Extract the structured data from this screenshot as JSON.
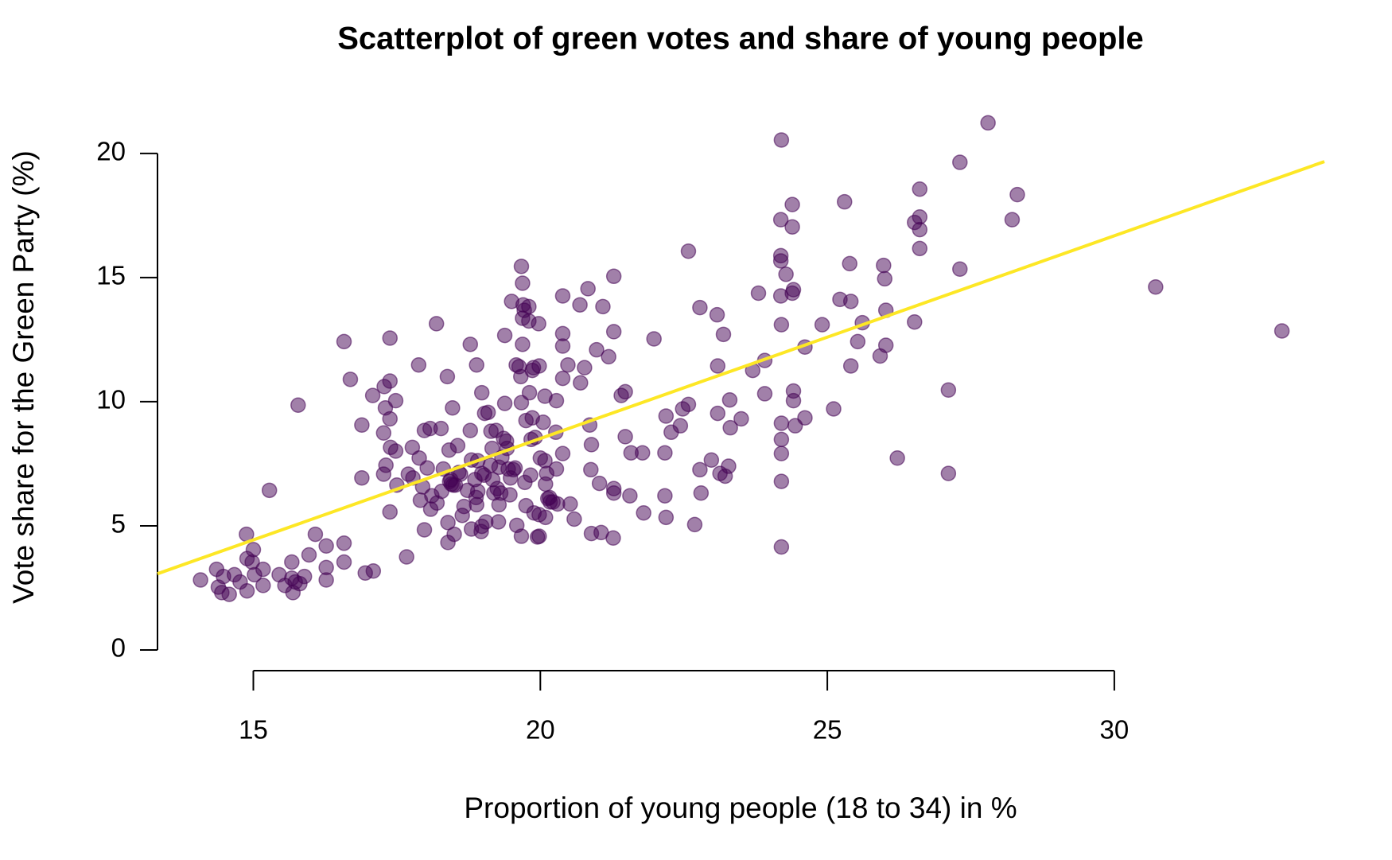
{
  "chart_data": {
    "type": "scatter",
    "title": "Scatterplot of green votes and share of young people",
    "x_label": "Proportion of young people (18 to 34) in %",
    "y_label": "Vote share for the Green Party (%)",
    "xlim": [
      13.33,
      33.66
    ],
    "ylim": [
      0,
      21.5
    ],
    "xticks": [
      15,
      20,
      25,
      30
    ],
    "yticks": [
      0,
      5,
      10,
      15,
      20
    ],
    "color": "#440154",
    "x": [
      14.08,
      14.36,
      14.39,
      14.45,
      14.48,
      14.58,
      14.67,
      14.77,
      14.88,
      14.89,
      14.89,
      14.98,
      15.0,
      15.02,
      15.17,
      15.17,
      15.28,
      15.45,
      15.55,
      15.67,
      15.67,
      15.69,
      15.73,
      15.78,
      15.81,
      15.89,
      15.97,
      16.08,
      16.27,
      16.27,
      16.27,
      16.58,
      16.58,
      16.58,
      16.69,
      16.89,
      16.89,
      16.95,
      17.08,
      17.09,
      17.27,
      17.27,
      17.28,
      17.3,
      17.31,
      17.38,
      17.38,
      17.38,
      17.38,
      17.39,
      17.48,
      17.48,
      17.5,
      17.67,
      17.7,
      17.77,
      17.78,
      17.88,
      17.89,
      17.91,
      17.95,
      17.98,
      17.98,
      18.03,
      18.08,
      18.09,
      18.11,
      18.19,
      18.2,
      18.27,
      18.28,
      18.31,
      18.38,
      18.39,
      18.39,
      18.41,
      18.42,
      18.44,
      18.45,
      18.47,
      18.48,
      18.5,
      18.52,
      18.56,
      18.58,
      18.61,
      18.64,
      18.67,
      18.73,
      18.78,
      18.78,
      18.8,
      18.8,
      18.86,
      18.88,
      18.89,
      18.89,
      18.91,
      18.91,
      18.97,
      18.98,
      18.98,
      18.98,
      19.02,
      19.03,
      19.05,
      19.09,
      19.13,
      19.14,
      19.16,
      19.17,
      19.19,
      19.23,
      19.25,
      19.27,
      19.28,
      19.28,
      19.31,
      19.33,
      19.36,
      19.38,
      19.38,
      19.41,
      19.42,
      19.44,
      19.47,
      19.48,
      19.5,
      19.53,
      19.56,
      19.58,
      19.59,
      19.63,
      19.66,
      19.67,
      19.67,
      19.67,
      19.69,
      19.69,
      19.69,
      19.7,
      19.72,
      19.73,
      19.75,
      19.75,
      19.8,
      19.8,
      19.81,
      19.83,
      19.84,
      19.86,
      19.86,
      19.88,
      19.89,
      19.91,
      19.95,
      19.97,
      19.98,
      19.98,
      19.98,
      20.0,
      20.05,
      20.08,
      20.08,
      20.09,
      20.09,
      20.11,
      20.13,
      20.16,
      20.17,
      20.22,
      20.27,
      20.28,
      20.28,
      20.3,
      20.39,
      20.39,
      20.39,
      20.39,
      20.39,
      20.48,
      20.52,
      20.59,
      20.69,
      20.7,
      20.77,
      20.83,
      20.86,
      20.88,
      20.89,
      20.89,
      20.98,
      21.03,
      21.06,
      21.09,
      21.19,
      21.27,
      21.28,
      21.28,
      21.28,
      21.28,
      21.41,
      21.48,
      21.48,
      21.56,
      21.58,
      21.78,
      21.8,
      21.98,
      22.17,
      22.17,
      22.19,
      22.19,
      22.28,
      22.44,
      22.48,
      22.58,
      22.58,
      22.69,
      22.78,
      22.78,
      22.8,
      22.98,
      23.08,
      23.09,
      23.09,
      23.13,
      23.19,
      23.22,
      23.28,
      23.3,
      23.31,
      23.5,
      23.7,
      23.8,
      23.91,
      23.91,
      24.2,
      24.19,
      24.19,
      24.19,
      24.19,
      24.2,
      24.2,
      24.2,
      24.2,
      24.2,
      24.2,
      24.28,
      24.39,
      24.39,
      24.39,
      24.41,
      24.41,
      24.41,
      24.44,
      24.61,
      24.61,
      24.91,
      25.11,
      25.22,
      25.3,
      25.39,
      25.41,
      25.41,
      25.53,
      25.61,
      25.92,
      25.98,
      26.0,
      26.02,
      26.02,
      26.22,
      26.52,
      26.52,
      26.61,
      26.61,
      26.61,
      26.61,
      27.11,
      27.11,
      27.31,
      27.31,
      27.8,
      28.22,
      28.31,
      30.72,
      32.92
    ],
    "y": [
      2.82,
      3.25,
      2.53,
      2.31,
      2.96,
      2.24,
      3.03,
      2.74,
      4.66,
      2.38,
      3.68,
      3.54,
      4.04,
      3.03,
      2.6,
      3.25,
      6.43,
      3.03,
      2.6,
      3.54,
      2.89,
      2.31,
      2.74,
      9.86,
      2.67,
      2.96,
      3.83,
      4.66,
      4.19,
      3.32,
      2.82,
      12.42,
      4.3,
      3.54,
      10.9,
      9.06,
      6.93,
      3.1,
      10.25,
      3.18,
      7.08,
      8.74,
      10.61,
      9.75,
      7.44,
      12.56,
      9.31,
      10.83,
      5.56,
      8.16,
      10.04,
      8.01,
      6.64,
      3.75,
      7.08,
      8.16,
      6.93,
      11.48,
      7.73,
      6.03,
      6.57,
      8.84,
      4.84,
      7.33,
      8.92,
      5.67,
      6.21,
      13.14,
      5.92,
      8.92,
      6.39,
      7.29,
      11.01,
      4.33,
      5.13,
      8.05,
      6.79,
      6.86,
      6.68,
      9.75,
      6.64,
      4.66,
      6.64,
      8.23,
      7.15,
      7.08,
      5.42,
      5.78,
      6.43,
      12.31,
      8.84,
      4.87,
      7.65,
      6.86,
      6.14,
      11.48,
      5.85,
      6.39,
      7.62,
      4.77,
      7.11,
      10.36,
      4.98,
      7.04,
      9.53,
      5.16,
      9.57,
      7.44,
      8.81,
      8.12,
      6.86,
      6.32,
      8.84,
      6.5,
      5.16,
      5.85,
      7.36,
      6.32,
      7.76,
      8.52,
      9.93,
      12.67,
      8.41,
      8.12,
      7.29,
      6.25,
      6.93,
      14.04,
      7.26,
      7.33,
      11.48,
      5.02,
      11.41,
      11.01,
      9.96,
      4.58,
      15.45,
      12.31,
      14.77,
      13.36,
      13.9,
      13.68,
      6.75,
      9.24,
      5.81,
      13.83,
      13.25,
      10.36,
      7.04,
      8.48,
      11.26,
      9.35,
      11.37,
      5.52,
      8.56,
      4.55,
      13.14,
      5.45,
      11.44,
      4.58,
      7.73,
      9.17,
      10.22,
      7.62,
      5.34,
      6.68,
      7.11,
      6.1,
      6.14,
      5.96,
      5.96,
      8.77,
      10.04,
      7.29,
      5.88,
      14.26,
      12.74,
      12.24,
      10.94,
      7.91,
      11.48,
      5.88,
      5.27,
      13.9,
      10.76,
      11.37,
      14.55,
      9.06,
      7.26,
      4.69,
      8.27,
      12.09,
      6.71,
      4.73,
      13.83,
      11.81,
      4.51,
      15.05,
      6.5,
      12.82,
      6.32,
      10.25,
      10.4,
      8.59,
      6.21,
      7.94,
      7.94,
      5.52,
      12.53,
      7.94,
      6.21,
      9.42,
      5.34,
      8.77,
      9.03,
      9.71,
      9.89,
      16.06,
      5.05,
      13.79,
      7.26,
      6.32,
      7.65,
      13.5,
      11.44,
      9.53,
      7.11,
      12.71,
      7.0,
      7.4,
      10.07,
      8.95,
      9.31,
      11.26,
      14.37,
      11.66,
      10.32,
      20.54,
      17.33,
      15.88,
      15.67,
      14.26,
      13.1,
      9.13,
      8.48,
      7.91,
      6.79,
      4.15,
      15.13,
      17.94,
      17.04,
      14.37,
      14.51,
      10.43,
      10.04,
      9.03,
      9.35,
      12.2,
      13.1,
      9.71,
      14.12,
      18.05,
      15.56,
      11.44,
      14.04,
      12.42,
      13.18,
      11.84,
      15.49,
      14.95,
      13.68,
      12.27,
      7.73,
      17.22,
      13.21,
      17.44,
      18.56,
      16.17,
      16.93,
      10.47,
      7.11,
      19.64,
      15.34,
      21.23,
      17.33,
      18.34,
      14.62,
      12.85
    ],
    "trend_line": {
      "x": [
        13.33,
        33.66
      ],
      "y": [
        3.07,
        19.67
      ],
      "color": "#fde725"
    }
  }
}
